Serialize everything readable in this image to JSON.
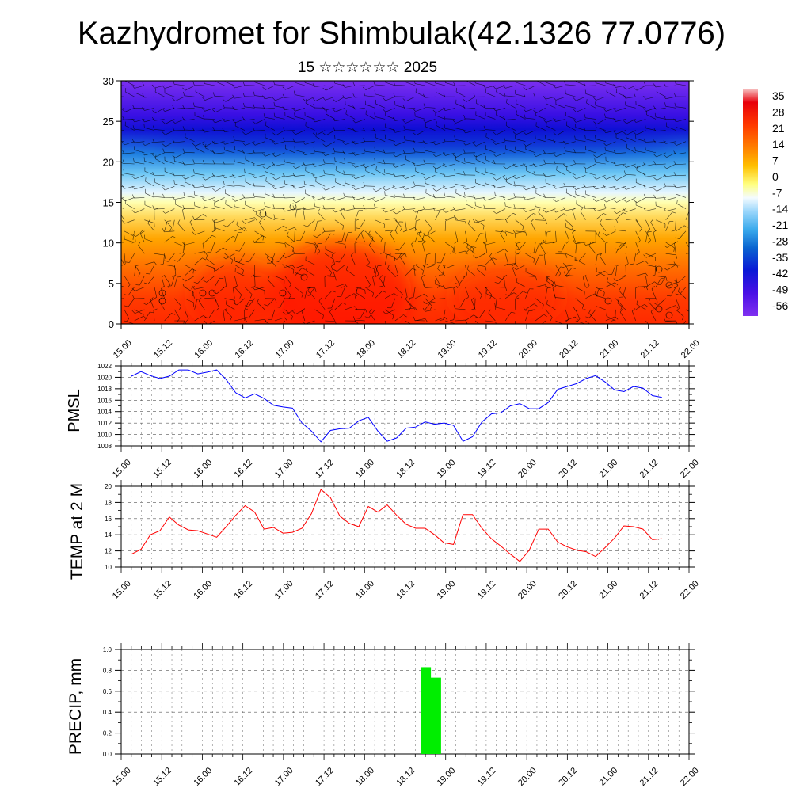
{
  "title": "Kazhydromet for Shimbulak(42.1326 77.0776)",
  "subtitle": "15 ☆☆☆☆☆☆ 2025",
  "colorbar": {
    "labels": [
      "35",
      "28",
      "21",
      "14",
      "7",
      "0",
      "-7",
      "-14",
      "-21",
      "-28",
      "-35",
      "-42",
      "-49",
      "-56"
    ],
    "stops": [
      "#f7b6b6",
      "#e8000b",
      "#ff3a00",
      "#ff7a00",
      "#ffb000",
      "#ffd84a",
      "#ffff9a",
      "#f0f8ff",
      "#aadcff",
      "#3eb0ee",
      "#0a6fd4",
      "#0a2ad8",
      "#3a00e6",
      "#7a2ff0"
    ]
  },
  "chart_data": [
    {
      "type": "heatmap",
      "name": "vertical-cross-section",
      "xlim": [
        0,
        84
      ],
      "ylim": [
        0,
        30
      ],
      "x_tick_labels": [
        "15.00",
        "15.12",
        "16.00",
        "16.12",
        "17.00",
        "17.12",
        "18.00",
        "18.12",
        "19.00",
        "19.12",
        "20.00",
        "20.12",
        "21.00",
        "21.12",
        "22.00"
      ],
      "y_ticks": [
        0,
        5,
        10,
        15,
        20,
        25,
        30
      ],
      "y_tick_labels": [
        "0",
        "5",
        "10",
        "15",
        "20",
        "25",
        "30"
      ],
      "levels": [
        35,
        28,
        21,
        14,
        7,
        0,
        -7,
        -14,
        -21,
        -28,
        -35,
        -42,
        -49,
        -56
      ],
      "colors": {
        "warm": "#ff2a00",
        "mid": "#ffffa8",
        "cold": "#1a1ad8",
        "top": "#7c2ff0"
      },
      "wind_barbs": true
    },
    {
      "type": "line",
      "name": "pmsl",
      "ylabel": "PMSL",
      "color": "#0000ff",
      "ylim": [
        1008,
        1022
      ],
      "y_ticks": [
        1008,
        1010,
        1012,
        1014,
        1016,
        1018,
        1020,
        1022
      ],
      "y_tick_labels": [
        "1008",
        "1010",
        "1012",
        "1014",
        "1016",
        "1018",
        "1020",
        "1022"
      ],
      "x_tick_labels": [
        "15.00",
        "15.12",
        "16.00",
        "16.12",
        "17.00",
        "17.12",
        "18.00",
        "18.12",
        "19.00",
        "19.12",
        "20.00",
        "20.12",
        "21.00",
        "21.12",
        "22.00"
      ],
      "values": [
        1020.2,
        1021.0,
        1020.3,
        1019.8,
        1020.2,
        1021.3,
        1021.3,
        1020.6,
        1020.9,
        1021.3,
        1019.6,
        1017.3,
        1016.4,
        1017.1,
        1016.3,
        1015.1,
        1014.8,
        1014.6,
        1012.0,
        1010.6,
        1008.7,
        1010.7,
        1011.0,
        1011.1,
        1012.4,
        1013.0,
        1010.6,
        1008.8,
        1009.4,
        1011.1,
        1011.3,
        1012.2,
        1011.8,
        1012.0,
        1011.6,
        1008.8,
        1009.6,
        1012.2,
        1013.6,
        1013.8,
        1015.0,
        1015.4,
        1014.5,
        1014.5,
        1015.6,
        1017.9,
        1018.4,
        1018.9,
        1019.8,
        1020.3,
        1019.2,
        1017.8,
        1017.5,
        1018.4,
        1018.1,
        1016.8,
        1016.5
      ]
    },
    {
      "type": "line",
      "name": "temp-2m",
      "ylabel": "TEMP at 2 M",
      "color": "#ff0000",
      "ylim": [
        10,
        20
      ],
      "y_ticks": [
        10,
        12,
        14,
        16,
        18,
        20
      ],
      "y_tick_labels": [
        "10",
        "12",
        "14",
        "16",
        "18",
        "20"
      ],
      "x_tick_labels": [
        "15.00",
        "15.12",
        "16.00",
        "16.12",
        "17.00",
        "17.12",
        "18.00",
        "18.12",
        "19.00",
        "19.12",
        "20.00",
        "20.12",
        "21.00",
        "21.12",
        "22.00"
      ],
      "values": [
        11.6,
        12.2,
        14.0,
        14.5,
        16.2,
        15.2,
        14.6,
        14.5,
        14.1,
        13.7,
        15.0,
        16.4,
        17.6,
        16.8,
        14.7,
        14.9,
        14.2,
        14.3,
        14.8,
        16.6,
        19.6,
        18.6,
        16.3,
        15.4,
        15.0,
        17.5,
        16.8,
        17.7,
        16.4,
        15.3,
        14.8,
        14.8,
        14.0,
        13.0,
        12.8,
        16.5,
        16.5,
        14.8,
        13.5,
        12.6,
        11.6,
        10.7,
        12.1,
        14.7,
        14.7,
        13.1,
        12.5,
        12.1,
        11.9,
        11.3,
        12.4,
        13.6,
        15.1,
        15.0,
        14.7,
        13.4,
        13.5
      ]
    },
    {
      "type": "bar",
      "name": "precip",
      "ylabel": "PRECIP, mm",
      "color": "#00ee00",
      "ylim": [
        0,
        1.0
      ],
      "y_ticks": [
        0,
        0.2,
        0.4,
        0.6,
        0.8,
        1.0
      ],
      "y_tick_labels": [
        "0.0",
        "0.2",
        "0.4",
        "0.6",
        "0.8",
        "1.0"
      ],
      "x_tick_labels": [
        "15.00",
        "15.12",
        "16.00",
        "16.12",
        "17.00",
        "17.12",
        "18.00",
        "18.12",
        "19.00",
        "19.12",
        "20.00",
        "20.12",
        "21.00",
        "21.12",
        "22.00"
      ],
      "bars": [
        {
          "x": 45.0,
          "value": 0.83
        },
        {
          "x": 46.5,
          "value": 0.73
        }
      ]
    }
  ]
}
